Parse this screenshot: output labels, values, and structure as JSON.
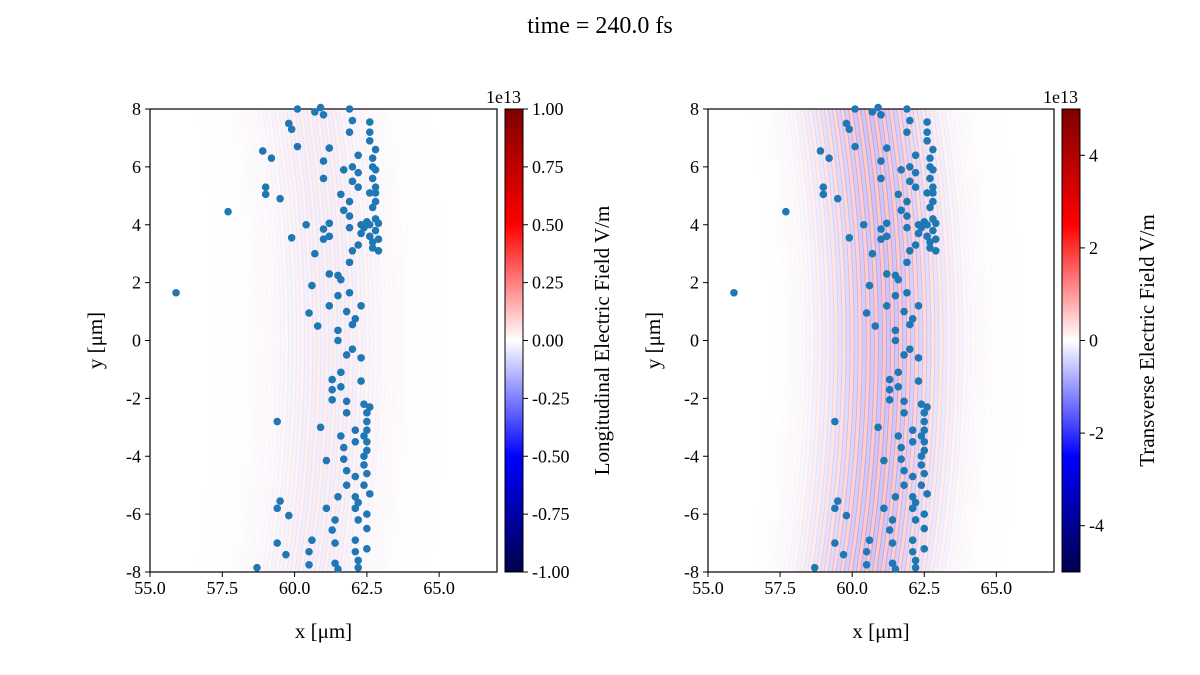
{
  "figure_title": "time = 240.0 fs",
  "chart_data": [
    {
      "type": "scatter",
      "background": "heatmap",
      "xlabel": "x [μm]",
      "ylabel": "y [μm]",
      "xlim": [
        55.0,
        67.0
      ],
      "ylim": [
        -8,
        8
      ],
      "xticks": [
        "55.0",
        "57.5",
        "60.0",
        "62.5",
        "65.0"
      ],
      "yticks": [
        "-8",
        "-6",
        "-4",
        "-2",
        "0",
        "2",
        "4",
        "6",
        "8"
      ],
      "colorbar": {
        "label": "Longitudinal Electric Field V/m",
        "offset_text": "1e13",
        "range": [
          -1.0,
          1.0
        ],
        "ticks": [
          "1.00",
          "0.75",
          "0.50",
          "0.25",
          "0.00",
          "-0.25",
          "-0.50",
          "-0.75",
          "-1.00"
        ],
        "colormap": "seismic"
      },
      "field_amplitude": 0.08,
      "marker_color": "#1f77b4",
      "points_ref": "particles"
    },
    {
      "type": "scatter",
      "background": "heatmap",
      "xlabel": "x [μm]",
      "ylabel": "y [μm]",
      "xlim": [
        55.0,
        67.0
      ],
      "ylim": [
        -8,
        8
      ],
      "xticks": [
        "55.0",
        "57.5",
        "60.0",
        "62.5",
        "65.0"
      ],
      "yticks": [
        "-8",
        "-6",
        "-4",
        "-2",
        "0",
        "2",
        "4",
        "6",
        "8"
      ],
      "colorbar": {
        "label": "Transverse Electric Field V/m",
        "offset_text": "1e13",
        "range": [
          -5,
          5
        ],
        "ticks": [
          "4",
          "2",
          "0",
          "-2",
          "-4"
        ],
        "colormap": "seismic"
      },
      "field_amplitude": 0.28,
      "marker_color": "#1f77b4",
      "points_ref": "particles"
    }
  ],
  "particles": [
    [
      55.9,
      1.65
    ],
    [
      57.7,
      4.45
    ],
    [
      58.7,
      -7.85
    ],
    [
      58.9,
      6.55
    ],
    [
      59.0,
      5.3
    ],
    [
      59.0,
      5.05
    ],
    [
      59.2,
      6.3
    ],
    [
      59.4,
      -2.8
    ],
    [
      59.4,
      -5.8
    ],
    [
      59.4,
      -7.0
    ],
    [
      59.5,
      -5.55
    ],
    [
      59.5,
      4.9
    ],
    [
      59.7,
      -7.4
    ],
    [
      59.8,
      -6.05
    ],
    [
      59.8,
      7.5
    ],
    [
      59.9,
      7.3
    ],
    [
      59.9,
      3.55
    ],
    [
      60.1,
      6.7
    ],
    [
      60.1,
      8.0
    ],
    [
      60.4,
      4.0
    ],
    [
      60.5,
      -7.75
    ],
    [
      60.5,
      0.95
    ],
    [
      60.6,
      1.9
    ],
    [
      60.5,
      -7.3
    ],
    [
      60.6,
      -6.9
    ],
    [
      60.7,
      7.9
    ],
    [
      60.7,
      3.0
    ],
    [
      60.8,
      0.5
    ],
    [
      60.9,
      -3.0
    ],
    [
      60.9,
      8.05
    ],
    [
      61.0,
      7.8
    ],
    [
      61.0,
      6.2
    ],
    [
      61.0,
      5.6
    ],
    [
      61.0,
      3.85
    ],
    [
      61.0,
      3.5
    ],
    [
      61.1,
      -5.8
    ],
    [
      61.1,
      -4.15
    ],
    [
      61.2,
      4.05
    ],
    [
      61.2,
      3.6
    ],
    [
      61.2,
      2.3
    ],
    [
      61.2,
      1.2
    ],
    [
      61.2,
      6.65
    ],
    [
      61.3,
      -1.7
    ],
    [
      61.3,
      -1.35
    ],
    [
      61.3,
      -2.05
    ],
    [
      61.3,
      -6.55
    ],
    [
      61.4,
      -7.0
    ],
    [
      61.4,
      -7.7
    ],
    [
      61.5,
      -5.4
    ],
    [
      61.5,
      -7.9
    ],
    [
      61.4,
      -6.2
    ],
    [
      61.5,
      0.0
    ],
    [
      61.5,
      0.35
    ],
    [
      61.5,
      1.55
    ],
    [
      61.5,
      2.25
    ],
    [
      61.6,
      2.1
    ],
    [
      61.6,
      5.05
    ],
    [
      61.7,
      4.5
    ],
    [
      61.7,
      5.9
    ],
    [
      61.6,
      -1.1
    ],
    [
      61.6,
      -1.6
    ],
    [
      61.6,
      -3.3
    ],
    [
      61.7,
      -3.7
    ],
    [
      61.7,
      -4.1
    ],
    [
      61.8,
      -2.1
    ],
    [
      61.8,
      -2.5
    ],
    [
      61.8,
      -4.5
    ],
    [
      61.8,
      -5.0
    ],
    [
      61.8,
      -0.5
    ],
    [
      61.8,
      1.0
    ],
    [
      61.9,
      1.65
    ],
    [
      61.9,
      2.7
    ],
    [
      61.9,
      3.9
    ],
    [
      61.9,
      4.8
    ],
    [
      62.0,
      5.5
    ],
    [
      62.0,
      6.0
    ],
    [
      61.9,
      7.2
    ],
    [
      62.0,
      7.6
    ],
    [
      61.9,
      8.0
    ],
    [
      61.9,
      4.3
    ],
    [
      62.0,
      3.1
    ],
    [
      62.0,
      0.55
    ],
    [
      62.1,
      0.75
    ],
    [
      62.0,
      -0.3
    ],
    [
      62.1,
      -3.1
    ],
    [
      62.1,
      -3.5
    ],
    [
      62.1,
      -4.7
    ],
    [
      62.1,
      -5.4
    ],
    [
      62.1,
      -5.8
    ],
    [
      62.1,
      -6.9
    ],
    [
      62.1,
      -7.3
    ],
    [
      62.2,
      -7.6
    ],
    [
      62.2,
      -7.85
    ],
    [
      62.2,
      -6.2
    ],
    [
      62.2,
      -5.6
    ],
    [
      62.2,
      5.3
    ],
    [
      62.2,
      5.8
    ],
    [
      62.2,
      6.4
    ],
    [
      62.2,
      3.3
    ],
    [
      62.3,
      3.7
    ],
    [
      62.3,
      4.0
    ],
    [
      62.3,
      1.2
    ],
    [
      62.3,
      -0.6
    ],
    [
      62.3,
      -1.4
    ],
    [
      62.4,
      -2.2
    ],
    [
      62.4,
      -3.3
    ],
    [
      62.4,
      -4.0
    ],
    [
      62.4,
      -4.3
    ],
    [
      62.4,
      -5.0
    ],
    [
      62.5,
      -2.5
    ],
    [
      62.5,
      -2.8
    ],
    [
      62.5,
      -3.1
    ],
    [
      62.5,
      -3.5
    ],
    [
      62.5,
      -3.8
    ],
    [
      62.5,
      -4.6
    ],
    [
      62.6,
      -2.3
    ],
    [
      62.6,
      -5.3
    ],
    [
      62.5,
      -6.0
    ],
    [
      62.5,
      -6.5
    ],
    [
      62.5,
      -7.2
    ],
    [
      62.4,
      3.9
    ],
    [
      62.5,
      4.1
    ],
    [
      62.6,
      4.0
    ],
    [
      62.6,
      3.6
    ],
    [
      62.7,
      3.4
    ],
    [
      62.7,
      3.2
    ],
    [
      62.8,
      4.2
    ],
    [
      62.8,
      3.8
    ],
    [
      62.9,
      3.5
    ],
    [
      62.9,
      3.1
    ],
    [
      62.7,
      4.6
    ],
    [
      62.6,
      5.1
    ],
    [
      62.7,
      5.6
    ],
    [
      62.7,
      6.0
    ],
    [
      62.7,
      6.3
    ],
    [
      62.6,
      6.9
    ],
    [
      62.6,
      7.2
    ],
    [
      62.6,
      7.55
    ],
    [
      62.8,
      5.3
    ],
    [
      62.8,
      6.6
    ],
    [
      62.8,
      5.9
    ],
    [
      62.8,
      5.1
    ],
    [
      62.8,
      4.8
    ],
    [
      62.9,
      4.05
    ]
  ]
}
